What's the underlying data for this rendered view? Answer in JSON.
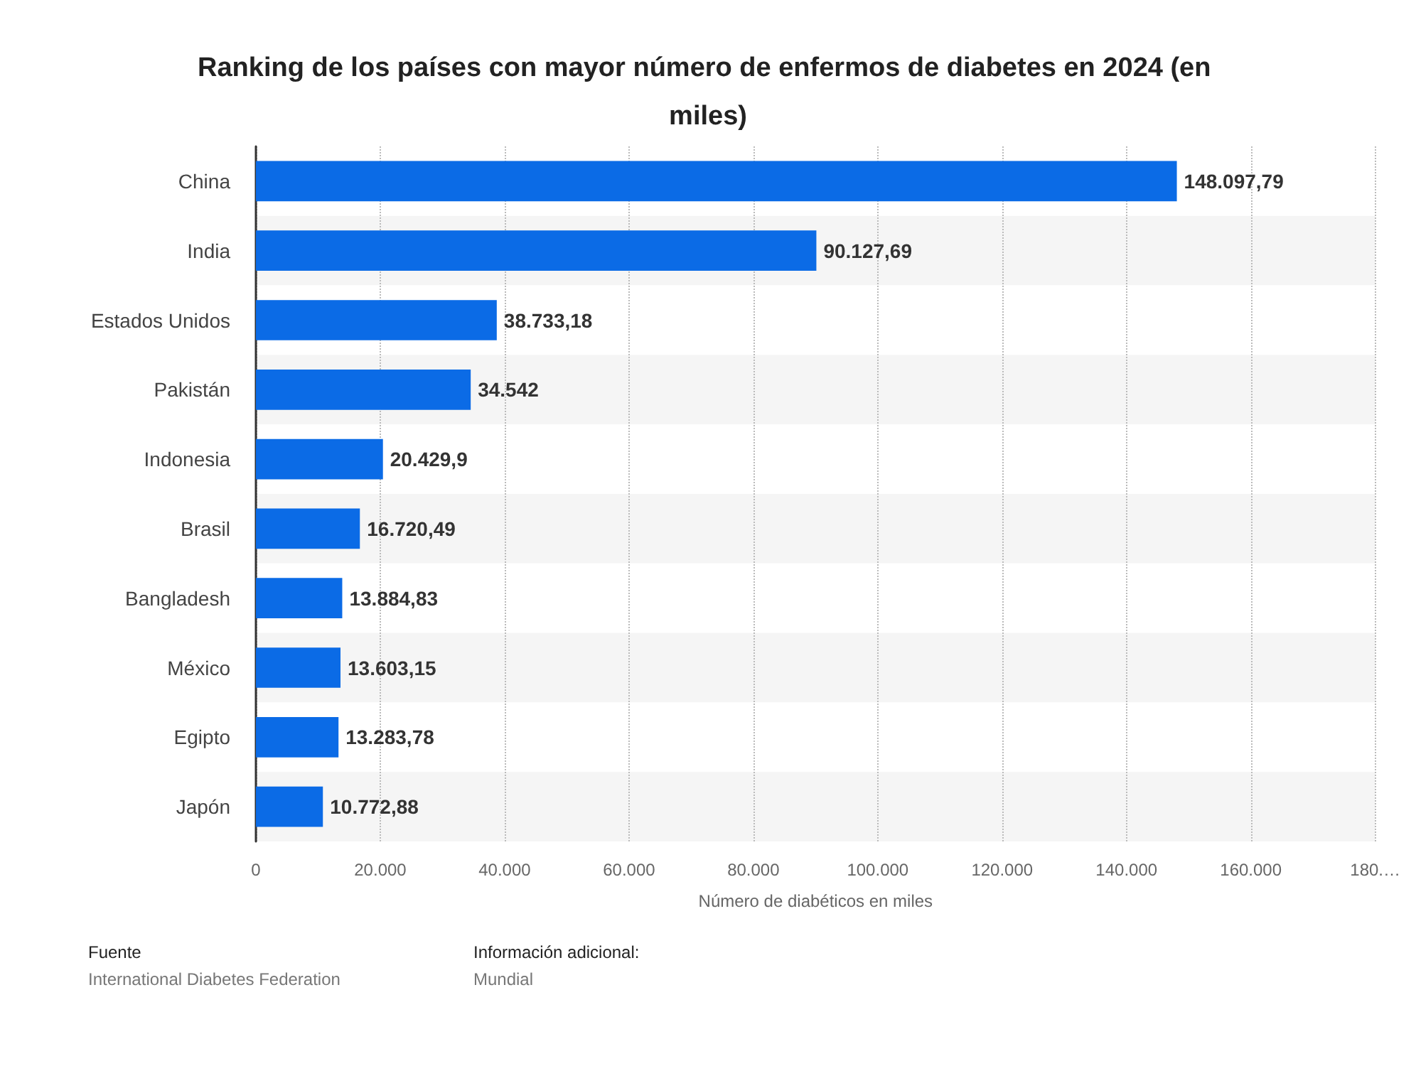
{
  "chart_data": {
    "type": "bar",
    "orientation": "horizontal",
    "title": "Ranking de los países con mayor número de enfermos de diabetes en 2024 (en miles)",
    "xlabel": "Número de diabéticos en miles",
    "categories": [
      "China",
      "India",
      "Estados Unidos",
      "Pakistán",
      "Indonesia",
      "Brasil",
      "Bangladesh",
      "México",
      "Egipto",
      "Japón"
    ],
    "values": [
      148097.79,
      90127.69,
      38733.18,
      34542,
      20429.9,
      16720.49,
      13884.83,
      13603.15,
      13283.78,
      10772.88
    ],
    "color": "#0b6be6",
    "value_labels": [
      "148.097,79",
      "90.127,69",
      "38.733,18",
      "34.542",
      "20.429,9",
      "16.720,49",
      "13.884,83",
      "13.603,15",
      "13.283,78",
      "10.772,88"
    ],
    "xlim": [
      0,
      180000
    ],
    "xticks": [
      0,
      {
        "value": 20000,
        "label": "20.000"
      },
      {
        "value": 40000,
        "label": "40.000"
      },
      {
        "value": 60000,
        "label": "60.000"
      },
      {
        "value": 80000,
        "label": "80.000"
      },
      {
        "value": 100000,
        "label": "100.000"
      },
      {
        "value": 120000,
        "label": "120.000"
      },
      {
        "value": 140000,
        "label": "140.000"
      },
      {
        "value": 160000,
        "label": "160.000"
      },
      {
        "value": 180000,
        "label": "180.…"
      }
    ],
    "grid": "x",
    "annotations": [
      "Fuente",
      "International Diabetes Federation",
      "Información adicional:",
      "Mundial"
    ]
  }
}
